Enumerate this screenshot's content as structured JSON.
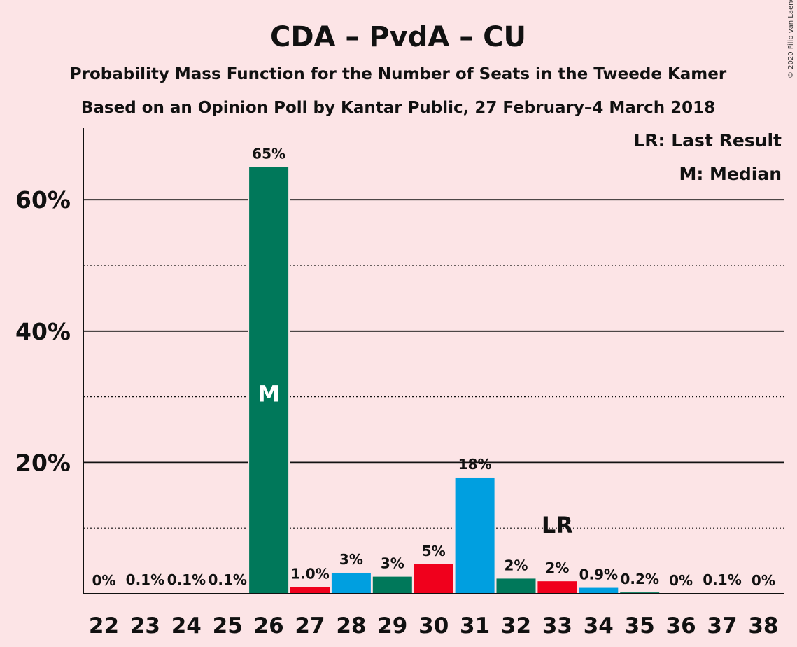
{
  "title": "CDA – PvdA – CU",
  "subtitle1": "Probability Mass Function for the Number of Seats in the Tweede Kamer",
  "subtitle2": "Based on an Opinion Poll by Kantar Public, 27 February–4 March 2018",
  "copyright": "© 2020 Filip van Laenen",
  "legend": {
    "last_result": "LR: Last Result",
    "median": "M: Median"
  },
  "colors": {
    "background": "#fce4e6",
    "blue": "#009fe0",
    "red": "#f0001c",
    "green": "#00785a"
  },
  "chart_data": {
    "type": "bar",
    "title": "CDA – PvdA – CU",
    "ylim": [
      0,
      70
    ],
    "y_major_ticks": [
      20,
      40,
      60
    ],
    "y_major_tick_labels": [
      "20%",
      "40%",
      "60%"
    ],
    "y_minor_gridlines": [
      10,
      30,
      50
    ],
    "grid": true,
    "legend_position": "top-right",
    "categories": [
      "22",
      "23",
      "24",
      "25",
      "26",
      "27",
      "28",
      "29",
      "30",
      "31",
      "32",
      "33",
      "34",
      "35",
      "36",
      "37",
      "38"
    ],
    "values": [
      0,
      0.1,
      0.1,
      0.1,
      65,
      1.0,
      3.2,
      2.6,
      4.5,
      17.7,
      2.3,
      1.9,
      0.9,
      0.2,
      0,
      0.1,
      0
    ],
    "labels": [
      "0%",
      "0.1%",
      "0.1%",
      "0.1%",
      "65%",
      "1.0%",
      "3%",
      "3%",
      "5%",
      "18%",
      "2%",
      "2%",
      "0.9%",
      "0.2%",
      "0%",
      "0.1%",
      "0%"
    ],
    "bar_colors": [
      "blue",
      "green",
      "red",
      "blue",
      "green",
      "red",
      "blue",
      "green",
      "red",
      "blue",
      "green",
      "red",
      "blue",
      "green",
      "red",
      "blue",
      "green"
    ],
    "median_seat": "26",
    "median_marker": "M",
    "last_result_seat": "33",
    "last_result_marker": "LR"
  }
}
